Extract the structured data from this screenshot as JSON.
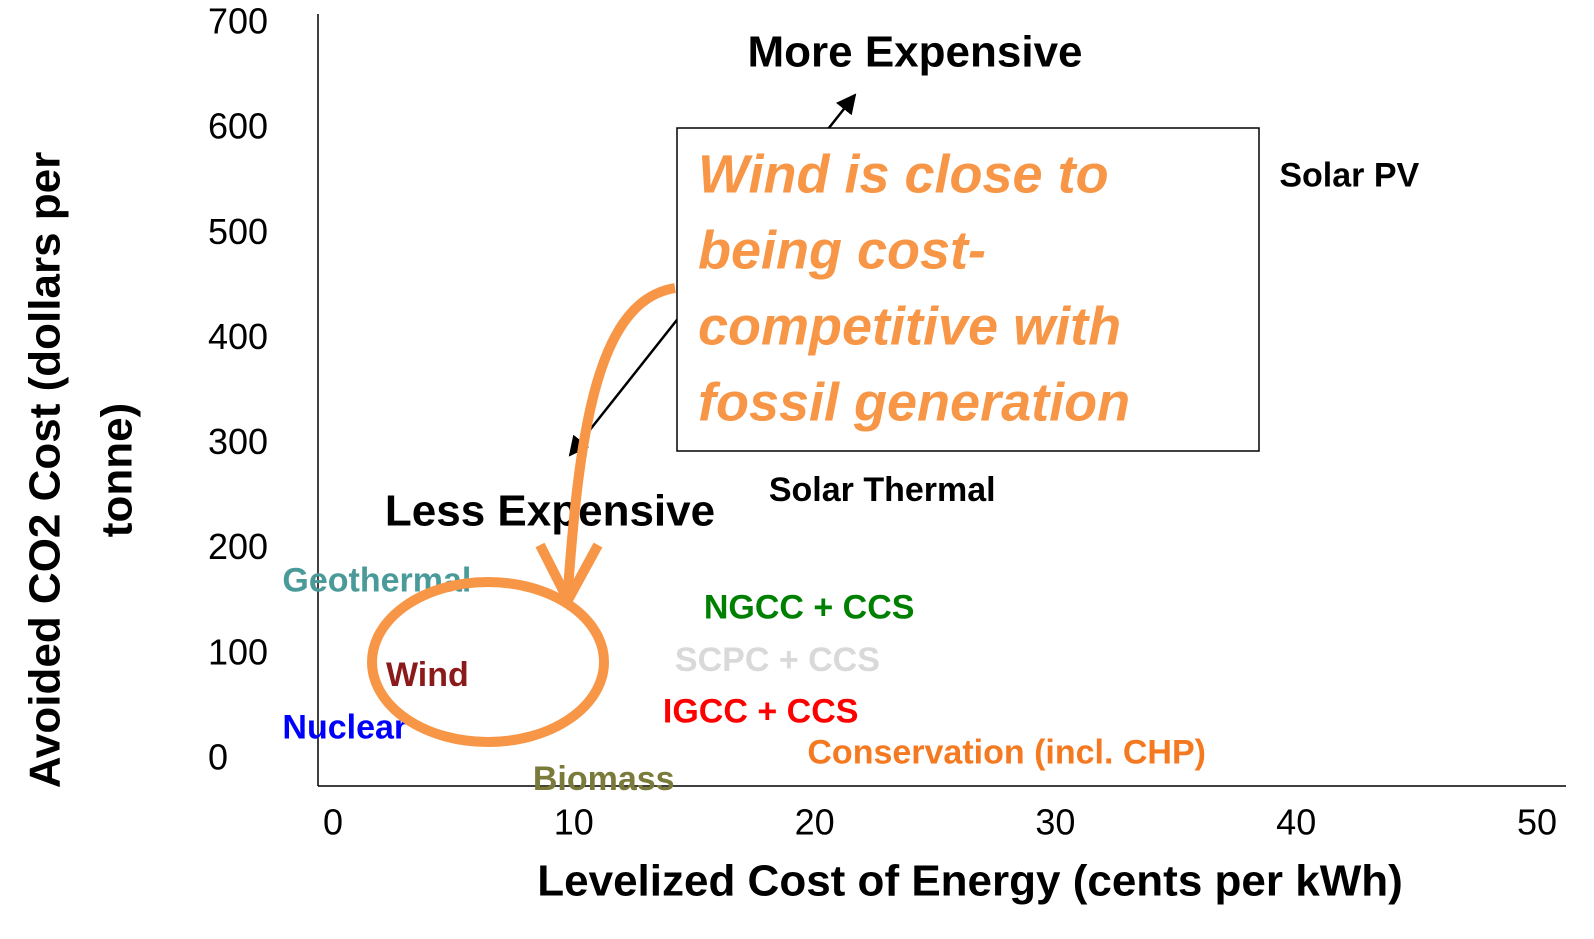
{
  "chart_data": {
    "type": "scatter",
    "xlabel": "Levelized Cost of Energy (cents per kWh)",
    "ylabel_lines": [
      "Avoided CO2 Cost (dollars per",
      "tonne)"
    ],
    "xlim": [
      0,
      50
    ],
    "ylim": [
      0,
      700
    ],
    "xticks": [
      0,
      10,
      20,
      30,
      40,
      50
    ],
    "yticks": [
      0,
      100,
      200,
      300,
      400,
      500,
      600,
      700
    ],
    "grid": false,
    "points": [
      {
        "name": "Solar PV",
        "color": "#000000",
        "x": 39.3,
        "y": 554
      },
      {
        "name": "Solar Thermal",
        "color": "#000000",
        "x": 18.1,
        "y": 255
      },
      {
        "name": "NGCC + CCS",
        "color": "#008000",
        "x": 15.4,
        "y": 143
      },
      {
        "name": "SCPC + CCS",
        "color": "#d9d9d9",
        "x": 14.2,
        "y": 93
      },
      {
        "name": "IGCC + CCS",
        "color": "#ff0000",
        "x": 13.7,
        "y": 44
      },
      {
        "name": "Conservation (incl. CHP)",
        "color": "#f47920",
        "x": 19.7,
        "y": 5
      },
      {
        "name": "Geothermal",
        "color": "#4a9a9a",
        "x": -2.1,
        "y": 169
      },
      {
        "name": "Wind",
        "color": "#8b1a1a",
        "x": 2.2,
        "y": 79
      },
      {
        "name": "Nuclear",
        "color": "#0000ff",
        "x": -2.1,
        "y": 29
      },
      {
        "name": "Biomass",
        "color": "#7a7a3a",
        "x": 8.3,
        "y": -20
      }
    ],
    "annotations": {
      "more_expensive": "More Expensive",
      "less_expensive": "Less Expensive",
      "callout_lines": [
        "Wind is close to",
        "being cost-",
        "competitive with",
        "fossil generation"
      ]
    }
  }
}
